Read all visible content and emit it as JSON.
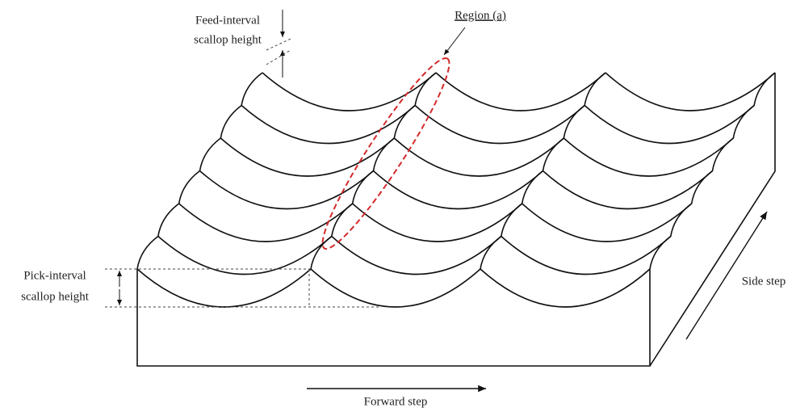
{
  "labels": {
    "feed_interval": [
      "Feed-interval",
      "scallop height"
    ],
    "region": "Region (a)",
    "pick_interval": [
      "Pick-interval",
      "scallop height"
    ],
    "side_step": "Side step",
    "forward_step": "Forward step"
  }
}
